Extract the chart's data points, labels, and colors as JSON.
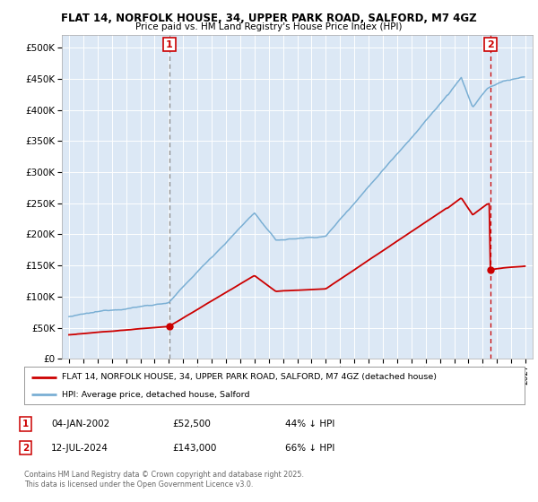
{
  "title1": "FLAT 14, NORFOLK HOUSE, 34, UPPER PARK ROAD, SALFORD, M7 4GZ",
  "title2": "Price paid vs. HM Land Registry's House Price Index (HPI)",
  "background_color": "#ffffff",
  "plot_bg_color": "#dce8f5",
  "grid_color": "#ffffff",
  "hpi_color": "#7aafd4",
  "property_color": "#cc0000",
  "marker1_date": 2002.04,
  "marker2_date": 2024.54,
  "property_price1": 52500,
  "property_price2": 143000,
  "legend_property": "FLAT 14, NORFOLK HOUSE, 34, UPPER PARK ROAD, SALFORD, M7 4GZ (detached house)",
  "legend_hpi": "HPI: Average price, detached house, Salford",
  "note1_label": "1",
  "note1_date": "04-JAN-2002",
  "note1_price": "£52,500",
  "note1_hpi": "44% ↓ HPI",
  "note2_label": "2",
  "note2_date": "12-JUL-2024",
  "note2_price": "£143,000",
  "note2_hpi": "66% ↓ HPI",
  "copyright": "Contains HM Land Registry data © Crown copyright and database right 2025.\nThis data is licensed under the Open Government Licence v3.0.",
  "xmin": 1994.5,
  "xmax": 2027.5,
  "ymin": 0,
  "ymax": 520000
}
